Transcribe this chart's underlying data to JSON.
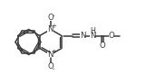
{
  "bg_color": "#ffffff",
  "line_color": "#3a3a3a",
  "line_width": 1.1,
  "font_size": 6.2,
  "charge_font_size": 5.0,
  "xlim": [
    0,
    9.5
  ],
  "ylim": [
    0,
    6
  ],
  "figsize": [
    1.61,
    0.93
  ],
  "dpi": 100
}
